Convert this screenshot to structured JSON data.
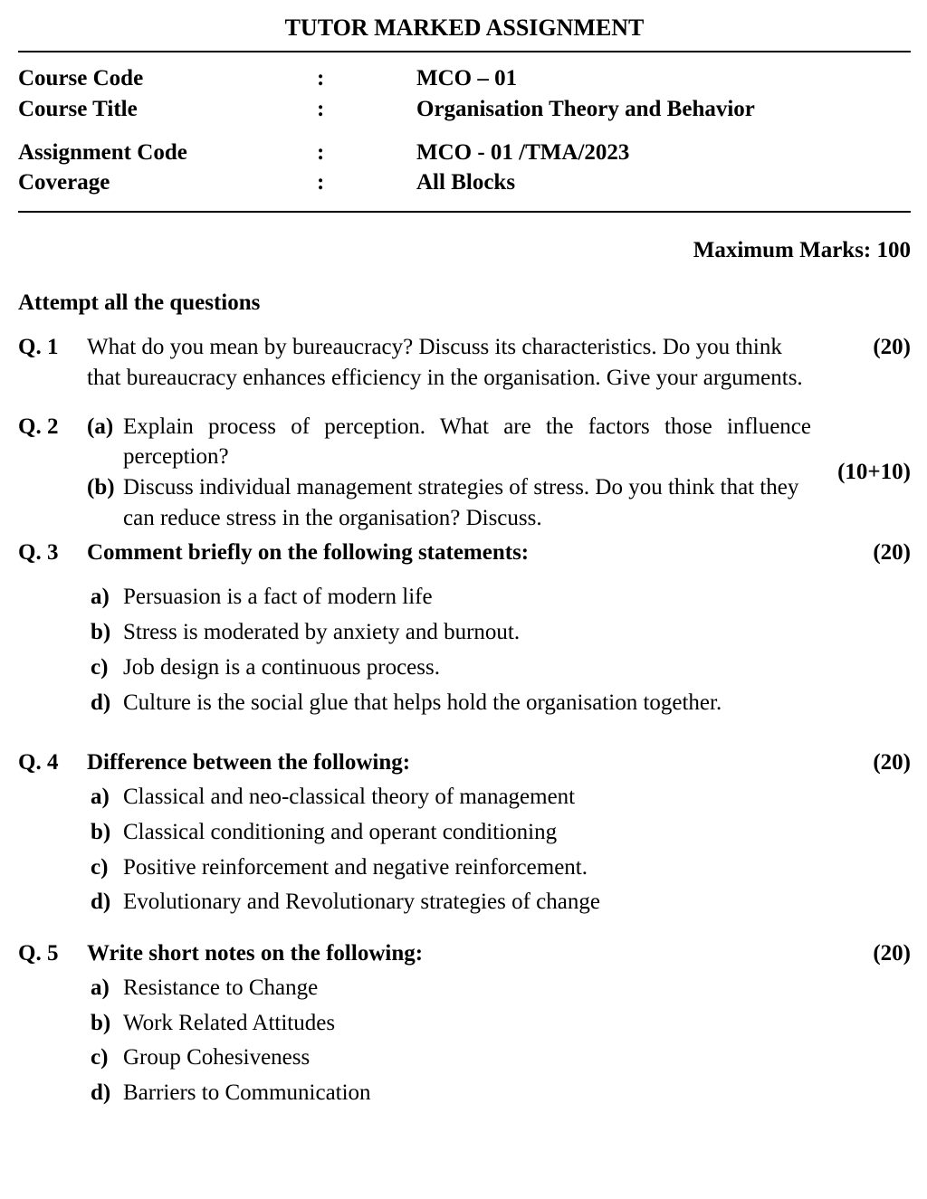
{
  "title": "TUTOR MARKED ASSIGNMENT",
  "info": {
    "course_code_label": "Course Code",
    "course_code_value": "MCO – 01",
    "course_title_label": "Course Title",
    "course_title_value": "Organisation Theory and Behavior",
    "assignment_code_label": "Assignment Code",
    "assignment_code_value": "MCO - 01 /TMA/2023",
    "coverage_label": "Coverage",
    "coverage_value": "All Blocks",
    "colon": ":"
  },
  "max_marks": "Maximum Marks: 100",
  "attempt": "Attempt all the questions",
  "questions": {
    "q1": {
      "num": "Q. 1",
      "text": "What do you mean by bureaucracy? Discuss its characteristics. Do you think that bureaucracy enhances efficiency in the organisation. Give your arguments.",
      "marks": "(20)"
    },
    "q2": {
      "num": "Q. 2",
      "a_label": "(a)",
      "a_text": "Explain process of perception. What are the factors those influence perception?",
      "b_label": "(b)",
      "b_text": "Discuss individual management strategies of stress. Do you think that they can reduce stress in the organisation? Discuss.",
      "marks": "(10+10)"
    },
    "q3": {
      "num": "Q. 3",
      "heading": "Comment briefly on the following statements:",
      "marks": "(20)",
      "a_label": "a)",
      "a_text": "Persuasion is a fact of modern life",
      "b_label": "b)",
      "b_text": "Stress is moderated by anxiety and burnout.",
      "c_label": "c)",
      "c_text": "Job design is a continuous process.",
      "d_label": "d)",
      "d_text": "Culture is the social glue that helps hold the organisation together."
    },
    "q4": {
      "num": "Q. 4",
      "heading": "Difference between the following:",
      "marks": "(20)",
      "a_label": "a)",
      "a_text": "Classical and neo-classical theory of management",
      "b_label": "b)",
      "b_text": "Classical conditioning and operant conditioning",
      "c_label": "c)",
      "c_text": "Positive reinforcement and negative reinforcement.",
      "d_label": "d)",
      "d_text": "Evolutionary and Revolutionary strategies of change"
    },
    "q5": {
      "num": "Q. 5",
      "heading": "Write short notes on the following:",
      "marks": "(20)",
      "a_label": "a)",
      "a_text": "Resistance to Change",
      "b_label": "b)",
      "b_text": "Work Related Attitudes",
      "c_label": "c)",
      "c_text": "Group Cohesiveness",
      "d_label": "d)",
      "d_text": "Barriers to Communication"
    }
  }
}
